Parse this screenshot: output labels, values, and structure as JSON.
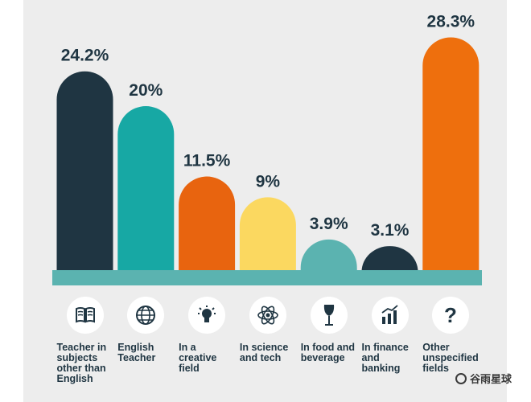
{
  "chart_data": {
    "type": "bar",
    "title": "",
    "xlabel": "",
    "ylabel": "",
    "ylim": [
      0,
      30
    ],
    "categories": [
      "Teacher in subjects other than English",
      "English Teacher",
      "In a creative field",
      "In science and tech",
      "In food and beverage",
      "In finance and banking",
      "Other unspecified fields"
    ],
    "values": [
      24.2,
      20,
      11.5,
      9,
      3.9,
      3.1,
      28.3
    ],
    "value_labels": [
      "24.2%",
      "20%",
      "11.5%",
      "9%",
      "3.9%",
      "3.1%",
      "28.3%"
    ],
    "label_lines": [
      [
        "Teacher in",
        "subjects",
        "other than",
        "English"
      ],
      [
        "English",
        "Teacher"
      ],
      [
        "In a",
        "creative",
        "field"
      ],
      [
        "In science",
        "and tech"
      ],
      [
        "In food and",
        "beverage"
      ],
      [
        "In finance",
        "and",
        "banking"
      ],
      [
        "Other",
        "unspecified",
        "fields"
      ]
    ],
    "icons": [
      "book-icon",
      "globe-icon",
      "lightbulb-icon",
      "atom-icon",
      "wine-glass-icon",
      "bar-chart-icon",
      "question-mark-icon"
    ],
    "colors": [
      "#1f3542",
      "#17a8a4",
      "#e8640f",
      "#fbd860",
      "#5bb3b0",
      "#1f3542",
      "#ee6f0d"
    ],
    "baseline_color": "#5bb3b0"
  },
  "watermark": {
    "text": "谷雨星球"
  }
}
